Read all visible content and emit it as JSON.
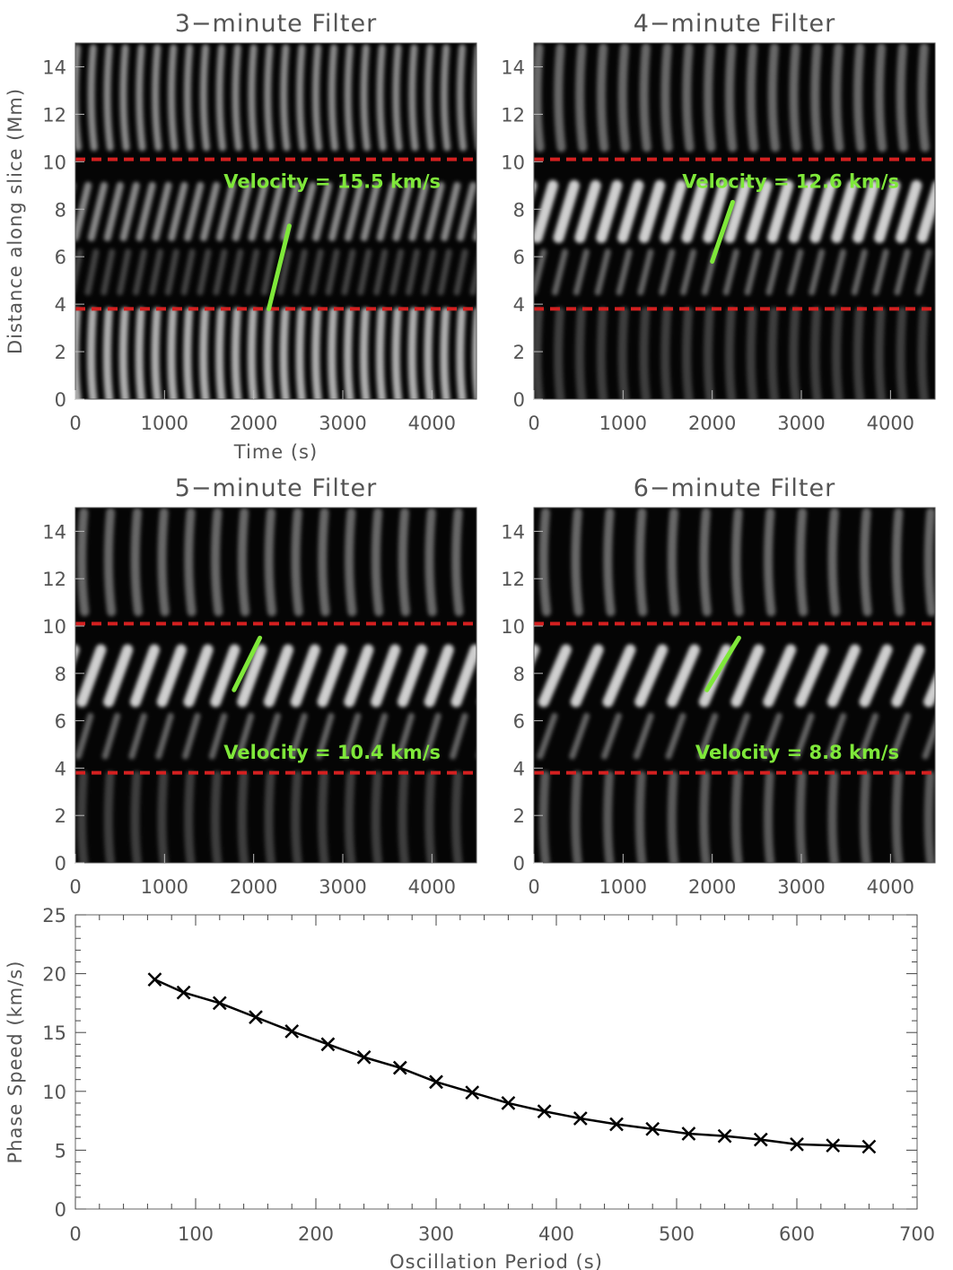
{
  "chart_data": [
    {
      "type": "heatmap",
      "title": "3−minute Filter",
      "xlabel": "Time (s)",
      "ylabel": "Distance along slice (Mm)",
      "xlim": [
        0,
        4500
      ],
      "ylim": [
        0,
        15
      ],
      "xticks": [
        "0",
        "1000",
        "2000",
        "3000",
        "4000"
      ],
      "yticks": [
        "0",
        "2",
        "4",
        "6",
        "8",
        "10",
        "12",
        "14"
      ],
      "dashed_lines_y": [
        3.8,
        10.1
      ],
      "fit_line": {
        "x": [
          2170,
          2400
        ],
        "y": [
          3.8,
          7.3
        ]
      },
      "annotation": "Velocity = 15.5 km/s",
      "period_s": 180,
      "line_color": "#d42020",
      "fit_color": "#7fe83a"
    },
    {
      "type": "heatmap",
      "title": "4−minute Filter",
      "xlabel": "",
      "ylabel": "",
      "xlim": [
        0,
        4500
      ],
      "ylim": [
        0,
        15
      ],
      "xticks": [
        "0",
        "1000",
        "2000",
        "3000",
        "4000"
      ],
      "yticks": [
        "0",
        "2",
        "4",
        "6",
        "8",
        "10",
        "12",
        "14"
      ],
      "dashed_lines_y": [
        3.8,
        10.1
      ],
      "fit_line": {
        "x": [
          2000,
          2230
        ],
        "y": [
          5.8,
          8.3
        ]
      },
      "annotation": "Velocity = 12.6 km/s",
      "period_s": 240,
      "line_color": "#d42020",
      "fit_color": "#7fe83a"
    },
    {
      "type": "heatmap",
      "title": "5−minute Filter",
      "xlabel": "",
      "ylabel": "",
      "xlim": [
        0,
        4500
      ],
      "ylim": [
        0,
        15
      ],
      "xticks": [
        "0",
        "1000",
        "2000",
        "3000",
        "4000"
      ],
      "yticks": [
        "0",
        "2",
        "4",
        "6",
        "8",
        "10",
        "12",
        "14"
      ],
      "dashed_lines_y": [
        3.8,
        10.1
      ],
      "fit_line": {
        "x": [
          1780,
          2070
        ],
        "y": [
          7.3,
          9.5
        ]
      },
      "annotation": "Velocity = 10.4 km/s",
      "period_s": 300,
      "line_color": "#d42020",
      "fit_color": "#7fe83a"
    },
    {
      "type": "heatmap",
      "title": "6−minute Filter",
      "xlabel": "",
      "ylabel": "",
      "xlim": [
        0,
        4500
      ],
      "ylim": [
        0,
        15
      ],
      "xticks": [
        "0",
        "1000",
        "2000",
        "3000",
        "4000"
      ],
      "yticks": [
        "0",
        "2",
        "4",
        "6",
        "8",
        "10",
        "12",
        "14"
      ],
      "dashed_lines_y": [
        3.8,
        10.1
      ],
      "fit_line": {
        "x": [
          1940,
          2300
        ],
        "y": [
          7.3,
          9.5
        ]
      },
      "annotation": "Velocity =  8.8 km/s",
      "period_s": 360,
      "line_color": "#d42020",
      "fit_color": "#7fe83a"
    },
    {
      "type": "line",
      "title": "",
      "xlabel": "Oscillation Period (s)",
      "ylabel": "Phase Speed (km/s)",
      "xlim": [
        0,
        700
      ],
      "ylim": [
        0,
        25
      ],
      "xticks": [
        "0",
        "100",
        "200",
        "300",
        "400",
        "500",
        "600",
        "700"
      ],
      "yticks": [
        "0",
        "5",
        "10",
        "15",
        "20",
        "25"
      ],
      "x": [
        66,
        90,
        120,
        150,
        180,
        210,
        240,
        270,
        300,
        330,
        360,
        390,
        420,
        450,
        480,
        510,
        540,
        570,
        600,
        630,
        660
      ],
      "y": [
        19.5,
        18.4,
        17.5,
        16.3,
        15.1,
        14.0,
        12.9,
        12.0,
        10.8,
        9.9,
        9.0,
        8.3,
        7.7,
        7.2,
        6.8,
        6.4,
        6.2,
        5.9,
        5.5,
        5.4,
        5.3
      ],
      "marker": "x",
      "line_color": "#000000"
    }
  ]
}
